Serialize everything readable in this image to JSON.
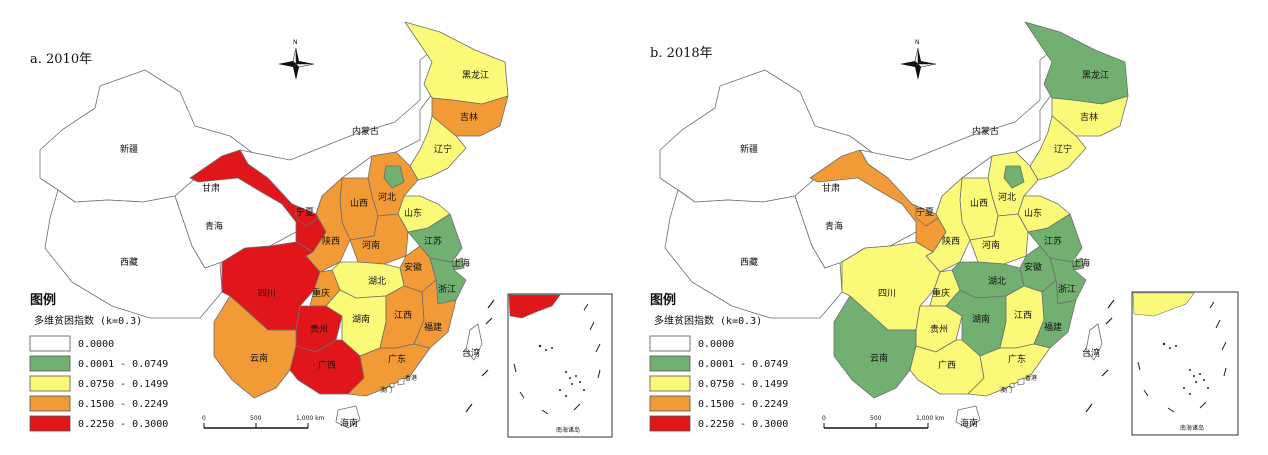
{
  "colors": {
    "class0": "#ffffff",
    "class1": "#72b072",
    "class2": "#fafa78",
    "class3": "#f29a35",
    "class4": "#e0161a",
    "border": "#6e6e6e"
  },
  "legend": {
    "title": "图例",
    "subtitle": "多维贫困指数 (k=0.3)",
    "classes": [
      "0.0000",
      "0.0001 - 0.0749",
      "0.0750 - 0.1499",
      "0.1500 - 0.2249",
      "0.2250 - 0.3000"
    ]
  },
  "north_label": "N",
  "scale": {
    "ticks": [
      "0",
      "500",
      "1,000 km"
    ]
  },
  "inset_label": "南海诸岛",
  "panels": [
    {
      "title": "a. 2010年",
      "provinces": {
        "xinjiang": {
          "name": "新疆",
          "class": 0
        },
        "xizang": {
          "name": "西藏",
          "class": 0
        },
        "qinghai": {
          "name": "青海",
          "class": 0
        },
        "gansu": {
          "name": "甘肃",
          "class": 4
        },
        "ningxia": {
          "name": "宁夏",
          "class": 4
        },
        "neimenggu": {
          "name": "内蒙古",
          "class": 0
        },
        "heilongjiang": {
          "name": "黑龙江",
          "class": 2
        },
        "jilin": {
          "name": "吉林",
          "class": 3
        },
        "liaoning": {
          "name": "辽宁",
          "class": 2
        },
        "hebei": {
          "name": "河北",
          "class": 3
        },
        "beijing": {
          "name": "",
          "class": 1
        },
        "shanxi": {
          "name": "山西",
          "class": 3
        },
        "shandong": {
          "name": "山东",
          "class": 2
        },
        "shaanxi": {
          "name": "陕西",
          "class": 3
        },
        "henan": {
          "name": "河南",
          "class": 3
        },
        "jiangsu": {
          "name": "江苏",
          "class": 1
        },
        "shanghai": {
          "name": "上海",
          "class": 1
        },
        "anhui": {
          "name": "安徽",
          "class": 3
        },
        "hubei": {
          "name": "湖北",
          "class": 2
        },
        "sichuan": {
          "name": "四川",
          "class": 4
        },
        "chongqing": {
          "name": "重庆",
          "class": 3
        },
        "zhejiang": {
          "name": "浙江",
          "class": 1
        },
        "guizhou": {
          "name": "贵州",
          "class": 4
        },
        "hunan": {
          "name": "湖南",
          "class": 2
        },
        "jiangxi": {
          "name": "江西",
          "class": 3
        },
        "fujian": {
          "name": "福建",
          "class": 3
        },
        "yunnan": {
          "name": "云南",
          "class": 3
        },
        "guangxi": {
          "name": "广西",
          "class": 4
        },
        "guangdong": {
          "name": "广东",
          "class": 3
        },
        "taiwan": {
          "name": "台湾",
          "class": 0
        },
        "hainan": {
          "name": "海南",
          "class": 0
        },
        "hongkong": {
          "name": "香港",
          "class": 0
        },
        "macau": {
          "name": "澳门",
          "class": 0
        }
      },
      "inset_fill_class": 4
    },
    {
      "title": "b. 2018年",
      "provinces": {
        "xinjiang": {
          "name": "新疆",
          "class": 0
        },
        "xizang": {
          "name": "西藏",
          "class": 0
        },
        "qinghai": {
          "name": "青海",
          "class": 0
        },
        "gansu": {
          "name": "甘肃",
          "class": 3
        },
        "ningxia": {
          "name": "宁夏",
          "class": 3
        },
        "neimenggu": {
          "name": "内蒙古",
          "class": 0
        },
        "heilongjiang": {
          "name": "黑龙江",
          "class": 1
        },
        "jilin": {
          "name": "吉林",
          "class": 2
        },
        "liaoning": {
          "name": "辽宁",
          "class": 2
        },
        "hebei": {
          "name": "河北",
          "class": 2
        },
        "beijing": {
          "name": "",
          "class": 1
        },
        "shanxi": {
          "name": "山西",
          "class": 2
        },
        "shandong": {
          "name": "山东",
          "class": 2
        },
        "shaanxi": {
          "name": "陕西",
          "class": 2
        },
        "henan": {
          "name": "河南",
          "class": 2
        },
        "jiangsu": {
          "name": "江苏",
          "class": 1
        },
        "shanghai": {
          "name": "上海",
          "class": 1
        },
        "anhui": {
          "name": "安徽",
          "class": 1
        },
        "hubei": {
          "name": "湖北",
          "class": 1
        },
        "sichuan": {
          "name": "四川",
          "class": 2
        },
        "chongqing": {
          "name": "重庆",
          "class": 2
        },
        "zhejiang": {
          "name": "浙江",
          "class": 1
        },
        "guizhou": {
          "name": "贵州",
          "class": 2
        },
        "hunan": {
          "name": "湖南",
          "class": 1
        },
        "jiangxi": {
          "name": "江西",
          "class": 2
        },
        "fujian": {
          "name": "福建",
          "class": 1
        },
        "yunnan": {
          "name": "云南",
          "class": 1
        },
        "guangxi": {
          "name": "广西",
          "class": 2
        },
        "guangdong": {
          "name": "广东",
          "class": 2
        },
        "taiwan": {
          "name": "台湾",
          "class": 0
        },
        "hainan": {
          "name": "海南",
          "class": 0
        },
        "hongkong": {
          "name": "香港",
          "class": 0
        },
        "macau": {
          "name": "澳门",
          "class": 0
        }
      },
      "inset_fill_class": 2
    }
  ]
}
